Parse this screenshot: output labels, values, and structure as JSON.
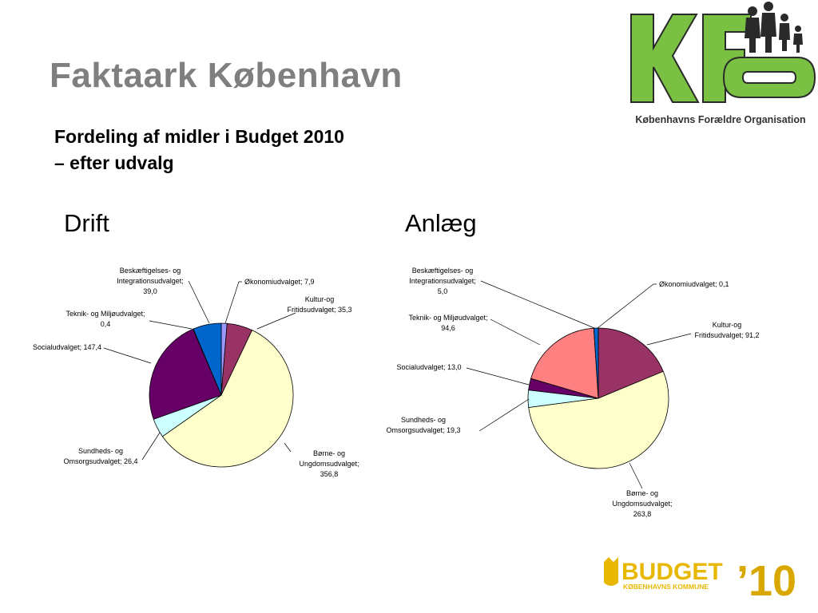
{
  "header": {
    "title": "Faktaark København",
    "subtitle_line1": "Fordeling af midler i Budget 2010",
    "subtitle_line2": "– efter udvalg"
  },
  "logos": {
    "kfo_letters": "KFO",
    "kfo_tagline": "Københavns Forældre Organisation",
    "budget_word": "BUDGET",
    "budget_year": "’10",
    "budget_sub": "KØBENHAVNS KOMMUNE"
  },
  "colors": {
    "title_gray": "#7f7f7f",
    "kfo_green": "#7ac143",
    "budget_yellow": "#e8b800"
  },
  "chart_data": [
    {
      "type": "pie",
      "title": "Drift",
      "slices": [
        {
          "label_lines": [
            "Økonomiudvalget; 7,9"
          ],
          "value": 7.9,
          "color": "#9999ff"
        },
        {
          "label_lines": [
            "Kultur-og",
            "Fritidsudvalget; 35,3"
          ],
          "value": 35.3,
          "color": "#993366"
        },
        {
          "label_lines": [
            "Børne- og",
            "Ungdomsudvalget;",
            "356,8"
          ],
          "value": 356.8,
          "color": "#ffffcc"
        },
        {
          "label_lines": [
            "Sundheds- og",
            "Omsorgsudvalget; 26,4"
          ],
          "value": 26.4,
          "color": "#ccffff"
        },
        {
          "label_lines": [
            "Socialudvalget; 147,4"
          ],
          "value": 147.4,
          "color": "#660066"
        },
        {
          "label_lines": [
            "Teknik- og Miljøudvalget;",
            "0,4"
          ],
          "value": 0.4,
          "color": "#ff8080"
        },
        {
          "label_lines": [
            "Beskæftigelses- og",
            "Integrationsudvalget;",
            "39,0"
          ],
          "value": 39.0,
          "color": "#0066cc"
        }
      ]
    },
    {
      "type": "pie",
      "title": "Anlæg",
      "slices": [
        {
          "label_lines": [
            "Økonomiudvalget; 0,1"
          ],
          "value": 0.1,
          "color": "#9999ff"
        },
        {
          "label_lines": [
            "Kultur-og",
            "Fritidsudvalget; 91,2"
          ],
          "value": 91.2,
          "color": "#993366"
        },
        {
          "label_lines": [
            "Børne- og",
            "Ungdomsudvalget;",
            "263,8"
          ],
          "value": 263.8,
          "color": "#ffffcc"
        },
        {
          "label_lines": [
            "Sundheds- og",
            "Omsorgsudvalget; 19,3"
          ],
          "value": 19.3,
          "color": "#ccffff"
        },
        {
          "label_lines": [
            "Socialudvalget; 13,0"
          ],
          "value": 13.0,
          "color": "#660066"
        },
        {
          "label_lines": [
            "Teknik- og Miljøudvalget;",
            "94,6"
          ],
          "value": 94.6,
          "color": "#ff8080"
        },
        {
          "label_lines": [
            "Beskæftigelses- og",
            "Integrationsudvalget;",
            "5,0"
          ],
          "value": 5.0,
          "color": "#0066cc"
        }
      ]
    }
  ]
}
